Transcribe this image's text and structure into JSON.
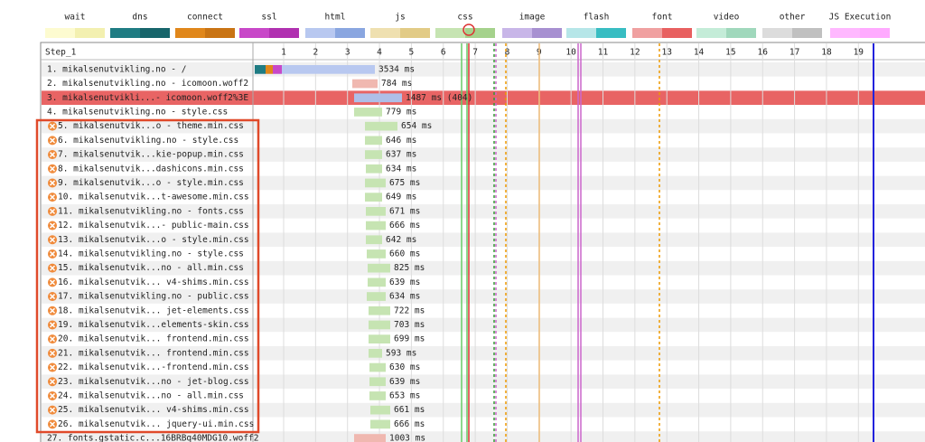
{
  "legend": [
    "wait",
    "dns",
    "connect",
    "ssl",
    "html",
    "js",
    "css",
    "image",
    "flash",
    "font",
    "video",
    "other",
    "JS Execution"
  ],
  "step": "Step_1",
  "ticks": [
    "1",
    "2",
    "3",
    "4",
    "5",
    "6",
    "7",
    "8",
    "9",
    "10",
    "11",
    "12",
    "13",
    "14",
    "15",
    "16",
    "17",
    "18",
    "19"
  ],
  "rows": [
    {
      "label": "1. mikalsenutvikling.no - /",
      "time": "3534 ms"
    },
    {
      "label": "2. mikalsenutvikling.no - icomoon.woff2",
      "time": "784 ms"
    },
    {
      "label": "3. mikalsenutvikli...- icomoon.woff2%3E",
      "time": "1487 ms (404)"
    },
    {
      "label": "4. mikalsenutvikling.no - style.css",
      "time": "779 ms"
    },
    {
      "label": "5. mikalsenutvik...o - theme.min.css",
      "time": "654 ms"
    },
    {
      "label": "6. mikalsenutvikling.no - style.css",
      "time": "646 ms"
    },
    {
      "label": "7. mikalsenutvik...kie-popup.min.css",
      "time": "637 ms"
    },
    {
      "label": "8. mikalsenutvik...dashicons.min.css",
      "time": "634 ms"
    },
    {
      "label": "9. mikalsenutvik...o - style.min.css",
      "time": "675 ms"
    },
    {
      "label": "10. mikalsenutvik...t-awesome.min.css",
      "time": "649 ms"
    },
    {
      "label": "11. mikalsenutvikling.no - fonts.css",
      "time": "671 ms"
    },
    {
      "label": "12. mikalsenutvik...- public-main.css",
      "time": "666 ms"
    },
    {
      "label": "13. mikalsenutvik...o - style.min.css",
      "time": "642 ms"
    },
    {
      "label": "14. mikalsenutvikling.no - style.css",
      "time": "660 ms"
    },
    {
      "label": "15. mikalsenutvik...no - all.min.css",
      "time": "825 ms"
    },
    {
      "label": "16. mikalsenutvik... v4-shims.min.css",
      "time": "639 ms"
    },
    {
      "label": "17. mikalsenutvikling.no - public.css",
      "time": "634 ms"
    },
    {
      "label": "18. mikalsenutvik... jet-elements.css",
      "time": "722 ms"
    },
    {
      "label": "19. mikalsenutvik...elements-skin.css",
      "time": "703 ms"
    },
    {
      "label": "20. mikalsenutvik... frontend.min.css",
      "time": "699 ms"
    },
    {
      "label": "21. mikalsenutvik... frontend.min.css",
      "time": "593 ms"
    },
    {
      "label": "22. mikalsenutvik...-frontend.min.css",
      "time": "630 ms"
    },
    {
      "label": "23. mikalsenutvik...no - jet-blog.css",
      "time": "639 ms"
    },
    {
      "label": "24. mikalsenutvik...no - all.min.css",
      "time": "653 ms"
    },
    {
      "label": "25. mikalsenutvik... v4-shims.min.css",
      "time": "661 ms"
    },
    {
      "label": "26. mikalsenutvik... jquery-ui.min.css",
      "time": "666 ms"
    },
    {
      "label": "27. fonts.gstatic.c...16BRBq40MDG10.woff2",
      "time": "1003 ms"
    }
  ]
}
